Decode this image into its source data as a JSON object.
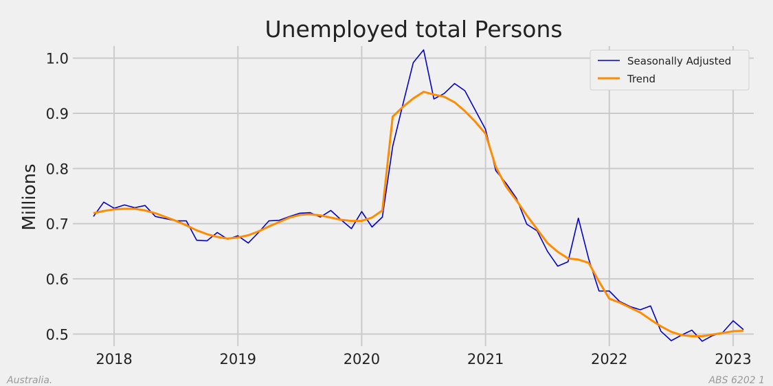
{
  "chart_data": {
    "type": "line",
    "title": "Unemployed total Persons",
    "xlabel": "",
    "ylabel": "Millions",
    "x_ticks": [
      "2018",
      "2019",
      "2020",
      "2021",
      "2022",
      "2023"
    ],
    "y_ticks": [
      "0.5",
      "0.6",
      "0.7",
      "0.8",
      "0.9",
      "1.0"
    ],
    "ylim": [
      0.478,
      1.022
    ],
    "xlim": [
      "2017-09",
      "2023-03"
    ],
    "grid": true,
    "legend_position": "top-right",
    "x": [
      "2017-11",
      "2017-12",
      "2018-01",
      "2018-02",
      "2018-03",
      "2018-04",
      "2018-05",
      "2018-06",
      "2018-07",
      "2018-08",
      "2018-09",
      "2018-10",
      "2018-11",
      "2018-12",
      "2019-01",
      "2019-02",
      "2019-03",
      "2019-04",
      "2019-05",
      "2019-06",
      "2019-07",
      "2019-08",
      "2019-09",
      "2019-10",
      "2019-11",
      "2019-12",
      "2020-01",
      "2020-02",
      "2020-03",
      "2020-04",
      "2020-05",
      "2020-06",
      "2020-07",
      "2020-08",
      "2020-09",
      "2020-10",
      "2020-11",
      "2020-12",
      "2021-01",
      "2021-02",
      "2021-03",
      "2021-04",
      "2021-05",
      "2021-06",
      "2021-07",
      "2021-08",
      "2021-09",
      "2021-10",
      "2021-11",
      "2021-12",
      "2022-01",
      "2022-02",
      "2022-03",
      "2022-04",
      "2022-05",
      "2022-06",
      "2022-07",
      "2022-08",
      "2022-09",
      "2022-10",
      "2022-11",
      "2022-12",
      "2023-01",
      "2023-02"
    ],
    "series": [
      {
        "name": "Seasonally Adjusted",
        "color": "#0000cc",
        "values": [
          0.713,
          0.739,
          0.728,
          0.734,
          0.729,
          0.733,
          0.713,
          0.709,
          0.705,
          0.705,
          0.67,
          0.669,
          0.684,
          0.672,
          0.678,
          0.665,
          0.684,
          0.705,
          0.706,
          0.713,
          0.719,
          0.72,
          0.712,
          0.724,
          0.707,
          0.691,
          0.722,
          0.694,
          0.712,
          0.84,
          0.917,
          0.992,
          1.015,
          0.926,
          0.936,
          0.954,
          0.941,
          0.906,
          0.871,
          0.796,
          0.773,
          0.746,
          0.699,
          0.687,
          0.65,
          0.623,
          0.631,
          0.71,
          0.636,
          0.578,
          0.578,
          0.559,
          0.55,
          0.544,
          0.551,
          0.505,
          0.488,
          0.498,
          0.507,
          0.487,
          0.497,
          0.503,
          0.524,
          0.508
        ]
      },
      {
        "name": "Trend",
        "color": "#ff8c00",
        "values": [
          0.719,
          0.723,
          0.726,
          0.727,
          0.727,
          0.724,
          0.719,
          0.712,
          0.705,
          0.697,
          0.688,
          0.681,
          0.676,
          0.673,
          0.675,
          0.679,
          0.686,
          0.695,
          0.703,
          0.711,
          0.716,
          0.717,
          0.715,
          0.711,
          0.707,
          0.705,
          0.705,
          0.711,
          0.724,
          0.894,
          0.912,
          0.927,
          0.939,
          0.934,
          0.93,
          0.92,
          0.904,
          0.885,
          0.863,
          0.803,
          0.767,
          0.742,
          0.715,
          0.69,
          0.665,
          0.649,
          0.637,
          0.635,
          0.629,
          0.595,
          0.564,
          0.557,
          0.548,
          0.539,
          0.526,
          0.514,
          0.504,
          0.498,
          0.496,
          0.496,
          0.499,
          0.502,
          0.505,
          0.506
        ]
      }
    ]
  },
  "footer": {
    "left": "Australia.",
    "right": "ABS 6202 1"
  }
}
